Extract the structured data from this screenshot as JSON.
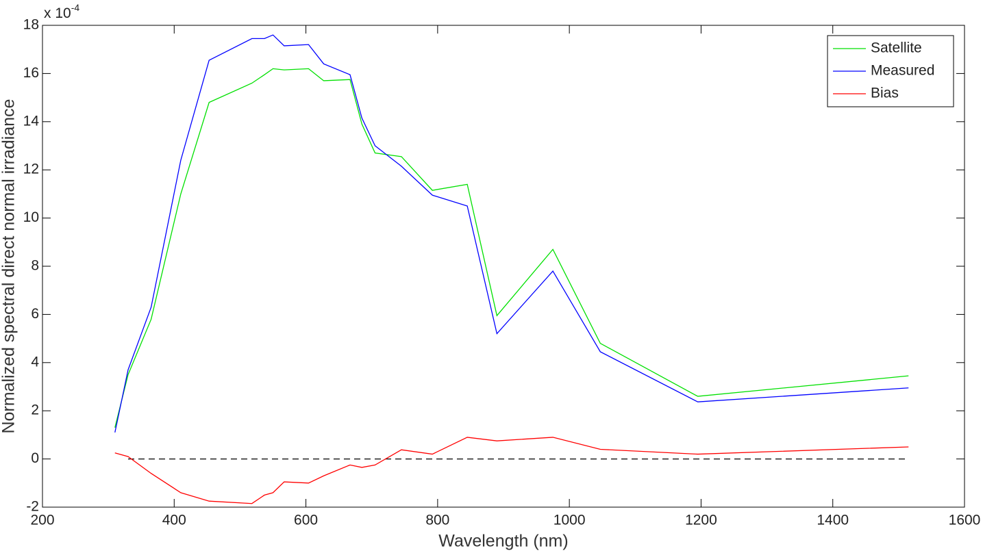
{
  "chart_data": {
    "type": "line",
    "x_label": "Wavelength (nm)",
    "y_label": "Normalized spectral direct normal irradiance",
    "y_multiplier_base": "x 10",
    "y_multiplier_exp": "-4",
    "x": [
      310,
      330,
      365,
      410,
      453,
      518,
      537,
      550,
      567,
      604,
      627,
      667,
      685,
      705,
      745,
      792,
      845,
      890,
      975,
      1047,
      1195,
      1515
    ],
    "series": [
      {
        "name": "Satellite",
        "color": "#00e000",
        "values": [
          1.3,
          3.5,
          5.8,
          11.0,
          14.8,
          15.6,
          15.95,
          16.2,
          16.15,
          16.2,
          15.7,
          15.75,
          13.9,
          12.7,
          12.55,
          11.15,
          11.4,
          5.95,
          8.7,
          4.8,
          2.6,
          3.45
        ]
      },
      {
        "name": "Measured",
        "color": "#0000ff",
        "values": [
          1.1,
          3.7,
          6.3,
          12.4,
          16.55,
          17.45,
          17.45,
          17.6,
          17.15,
          17.2,
          16.4,
          15.95,
          14.15,
          13.0,
          12.15,
          10.95,
          10.5,
          5.2,
          7.8,
          4.45,
          2.37,
          2.95
        ]
      },
      {
        "name": "Bias",
        "color": "#ff0000",
        "values": [
          0.25,
          0.1,
          -0.6,
          -1.4,
          -1.75,
          -1.85,
          -1.5,
          -1.4,
          -0.95,
          -1.0,
          -0.7,
          -0.25,
          -0.35,
          -0.25,
          0.38,
          0.2,
          0.9,
          0.75,
          0.9,
          0.4,
          0.2,
          0.5
        ]
      }
    ],
    "reference_line": {
      "x": [
        330,
        1515
      ],
      "value": 0,
      "color": "#000000"
    },
    "xlim": [
      200,
      1600
    ],
    "xticks": [
      200,
      400,
      600,
      800,
      1000,
      1200,
      1400,
      1600
    ],
    "ylim": [
      -2,
      18
    ],
    "yticks": [
      -2,
      0,
      2,
      4,
      6,
      8,
      10,
      12,
      14,
      16,
      18
    ],
    "legend": "top-right",
    "grid": false
  }
}
